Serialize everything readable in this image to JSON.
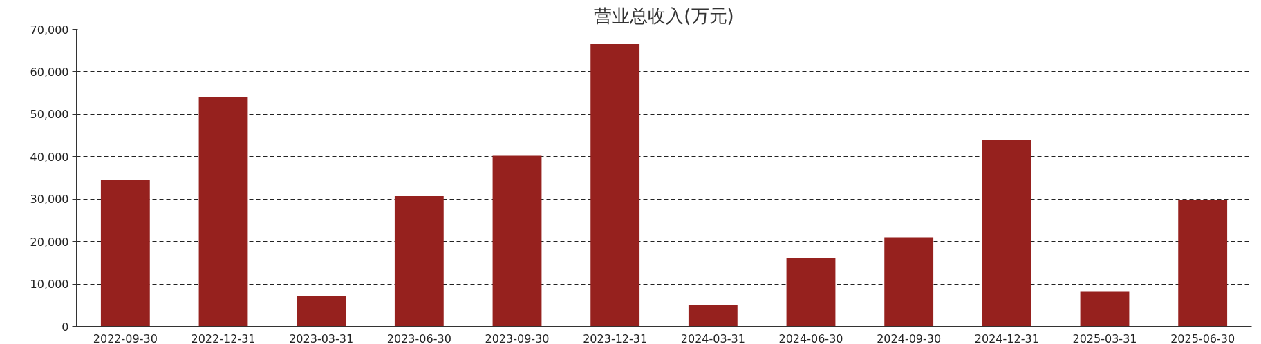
{
  "chart_data": {
    "type": "bar",
    "title": "营业总收入(万元)",
    "categories": [
      "2022-09-30",
      "2022-12-31",
      "2023-03-31",
      "2023-06-30",
      "2023-09-30",
      "2023-12-31",
      "2024-03-31",
      "2024-06-30",
      "2024-09-30",
      "2024-12-31",
      "2025-03-31",
      "2025-06-30"
    ],
    "values": [
      34600,
      54100,
      7100,
      30700,
      40200,
      66600,
      5100,
      16100,
      21000,
      43900,
      8300,
      29800
    ],
    "color": "#96211e",
    "ylim": [
      0,
      70000
    ],
    "yticks": [
      {
        "value": 0,
        "label": "0"
      },
      {
        "value": 10000,
        "label": "10,000"
      },
      {
        "value": 20000,
        "label": "20,000"
      },
      {
        "value": 30000,
        "label": "30,000"
      },
      {
        "value": 40000,
        "label": "40,000"
      },
      {
        "value": 50000,
        "label": "50,000"
      },
      {
        "value": 60000,
        "label": "60,000"
      },
      {
        "value": 70000,
        "label": "70,000"
      }
    ],
    "grid": "y"
  }
}
